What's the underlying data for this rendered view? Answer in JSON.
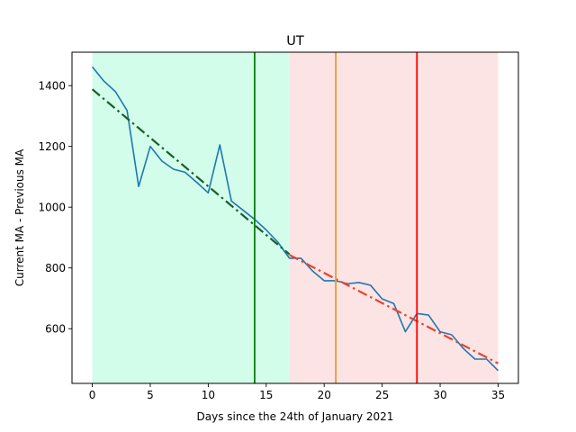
{
  "chart_data": {
    "type": "line",
    "title": "UT",
    "xlabel": "Days since the 24th of January 2021",
    "ylabel": "Current MA - Previous MA",
    "xlim": [
      -1.75,
      36.75
    ],
    "ylim": [
      420,
      1510
    ],
    "xticks": [
      0,
      5,
      10,
      15,
      20,
      25,
      30,
      35
    ],
    "yticks": [
      600,
      800,
      1000,
      1200,
      1400
    ],
    "grid": false,
    "shaded_regions": [
      {
        "x0": 0,
        "x1": 17,
        "color": "#d2fdea"
      },
      {
        "x0": 17,
        "x1": 35,
        "color": "#fde4e4"
      }
    ],
    "vertical_lines": [
      {
        "x": 14,
        "color": "#008000"
      },
      {
        "x": 21,
        "color": "#e69a3c"
      },
      {
        "x": 28,
        "color": "#ff0000"
      }
    ],
    "series": [
      {
        "color": "#1f77b4",
        "style": "solid",
        "x": [
          0,
          1,
          2,
          3,
          4,
          5,
          6,
          7,
          8,
          9,
          10,
          11,
          12,
          13,
          14,
          15,
          16,
          17,
          18,
          19,
          20,
          21,
          22,
          23,
          24,
          25,
          26,
          27,
          28,
          29,
          30,
          31,
          32,
          33,
          34,
          35
        ],
        "y": [
          1462,
          1415,
          1380,
          1318,
          1068,
          1200,
          1152,
          1125,
          1115,
          1082,
          1047,
          1205,
          1020,
          990,
          960,
          925,
          885,
          832,
          832,
          790,
          758,
          758,
          748,
          752,
          743,
          698,
          683,
          590,
          650,
          645,
          590,
          580,
          535,
          500,
          500,
          462
        ]
      },
      {
        "color": "#1a5e2a",
        "style": "dashdot",
        "x": [
          0,
          17
        ],
        "y": [
          1388,
          845
        ]
      },
      {
        "color": "#e8432b",
        "style": "dashdot",
        "x": [
          17,
          35
        ],
        "y": [
          843,
          486
        ]
      }
    ]
  }
}
